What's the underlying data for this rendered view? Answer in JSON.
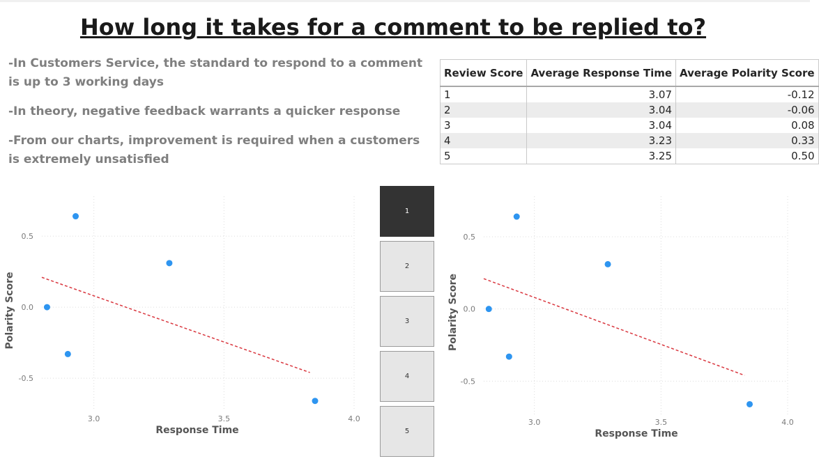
{
  "title": "How long it takes for a comment to be replied to?",
  "notes": [
    "-In Customers Service, the standard to respond to a comment is up to 3 working days",
    "-In theory, negative feedback warrants a quicker response",
    "-From our charts, improvement is required when a customers is extremely unsatisfied"
  ],
  "table": {
    "headers": [
      "Review Score",
      "Average Response Time",
      "Average Polarity Score"
    ],
    "rows": [
      [
        "1",
        "3.07",
        "-0.12"
      ],
      [
        "2",
        "3.04",
        "-0.06"
      ],
      [
        "3",
        "3.04",
        "0.08"
      ],
      [
        "4",
        "3.23",
        "0.33"
      ],
      [
        "5",
        "3.25",
        "0.50"
      ]
    ]
  },
  "slicer": {
    "options": [
      "1",
      "2",
      "3",
      "4",
      "5"
    ],
    "selected": "1"
  },
  "colors": {
    "point": "#2e95f0",
    "trend": "#d9363e",
    "slicer_selected": "#333333"
  },
  "chart_data": [
    {
      "type": "scatter",
      "xlabel": "Response Time",
      "ylabel": "Polarity Score",
      "xticks": [
        "3.0",
        "3.5",
        "4.0"
      ],
      "yticks": [
        "0.5",
        "0.0",
        "-0.5"
      ],
      "xlim": [
        2.8,
        4.0
      ],
      "ylim": [
        -0.73,
        0.78
      ],
      "grid": true,
      "points": [
        {
          "x": 2.93,
          "y": 0.64
        },
        {
          "x": 3.29,
          "y": 0.31
        },
        {
          "x": 2.82,
          "y": 0.0
        },
        {
          "x": 2.9,
          "y": -0.33
        },
        {
          "x": 3.85,
          "y": -0.66
        }
      ],
      "trendline": [
        {
          "x": 2.8,
          "y": 0.21
        },
        {
          "x": 3.83,
          "y": -0.46
        }
      ]
    },
    {
      "type": "scatter",
      "xlabel": "Response Time",
      "ylabel": "Polarity Score",
      "xticks": [
        "3.0",
        "3.5",
        "4.0"
      ],
      "yticks": [
        "0.5",
        "0.0",
        "-0.5"
      ],
      "xlim": [
        2.8,
        4.0
      ],
      "ylim": [
        -0.73,
        0.78
      ],
      "grid": true,
      "points": [
        {
          "x": 2.93,
          "y": 0.64
        },
        {
          "x": 3.29,
          "y": 0.31
        },
        {
          "x": 2.82,
          "y": 0.0
        },
        {
          "x": 2.9,
          "y": -0.33
        },
        {
          "x": 3.85,
          "y": -0.66
        }
      ],
      "trendline": [
        {
          "x": 2.8,
          "y": 0.21
        },
        {
          "x": 3.83,
          "y": -0.46
        }
      ]
    }
  ]
}
